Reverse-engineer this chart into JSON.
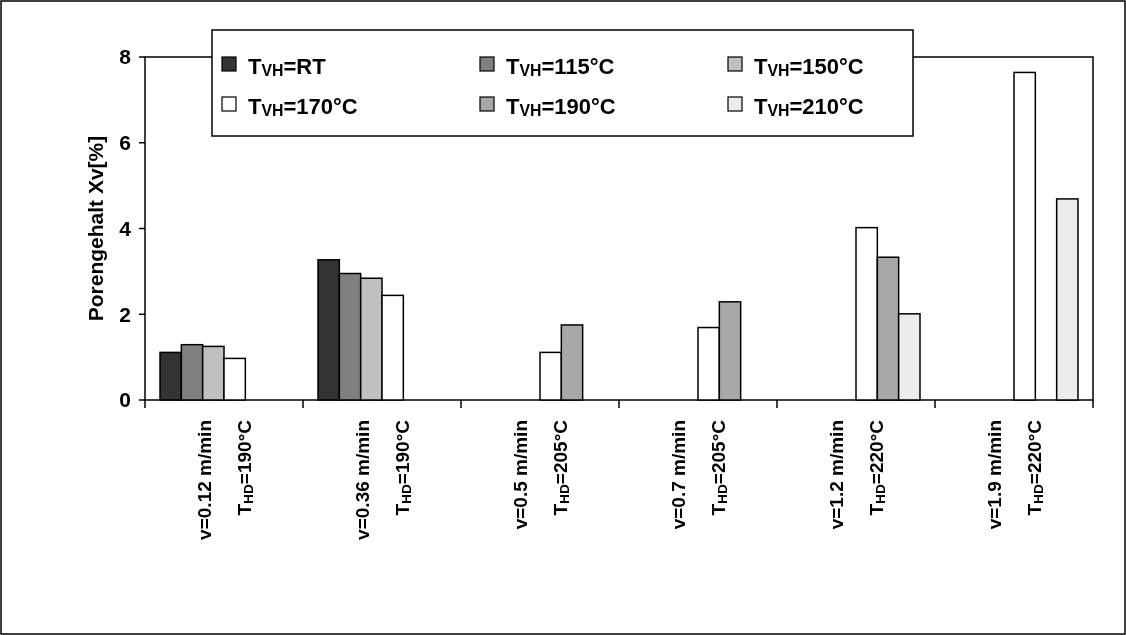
{
  "chart_data": {
    "type": "bar",
    "ylabel": "Porengehalt Xv[%]",
    "categories": [
      "v=0.12 m/min\nT$_{HD}$=190°C",
      "v=0.36 m/min\nT$_{HD}$=190°C",
      "v=0.5 m/min\nT$_{HD}$=205°C",
      "v=0.7 m/min\nT$_{HD}$=205°C",
      "v=1.2 m/min\nT$_{HD}$=220°C",
      "v=1.9 m/min\nT$_{HD}$=220°C"
    ],
    "series": [
      {
        "name": "T$_{VH}$=RT",
        "color": "#333333",
        "values": [
          1.11,
          3.27,
          null,
          null,
          null,
          null
        ]
      },
      {
        "name": "T$_{VH}$=115°C",
        "color": "#808080",
        "values": [
          1.29,
          2.95,
          null,
          null,
          null,
          null
        ]
      },
      {
        "name": "T$_{VH}$=150°C",
        "color": "#c0c0c0",
        "values": [
          1.25,
          2.84,
          null,
          null,
          null,
          null
        ]
      },
      {
        "name": "T$_{VH}$=170°C",
        "color": "#ffffff",
        "values": [
          0.97,
          2.44,
          1.11,
          1.69,
          4.02,
          7.64
        ]
      },
      {
        "name": "T$_{VH}$=190°C",
        "color": "#a8a8a8",
        "values": [
          null,
          null,
          1.75,
          2.29,
          3.33,
          null
        ]
      },
      {
        "name": "T$_{VH}$=210°C",
        "color": "#ececec",
        "values": [
          null,
          null,
          null,
          null,
          2.01,
          4.69
        ]
      }
    ],
    "ylim": [
      0,
      8
    ],
    "yticks": [
      0,
      2,
      4,
      6,
      8
    ],
    "grid": false,
    "legend": "top"
  }
}
